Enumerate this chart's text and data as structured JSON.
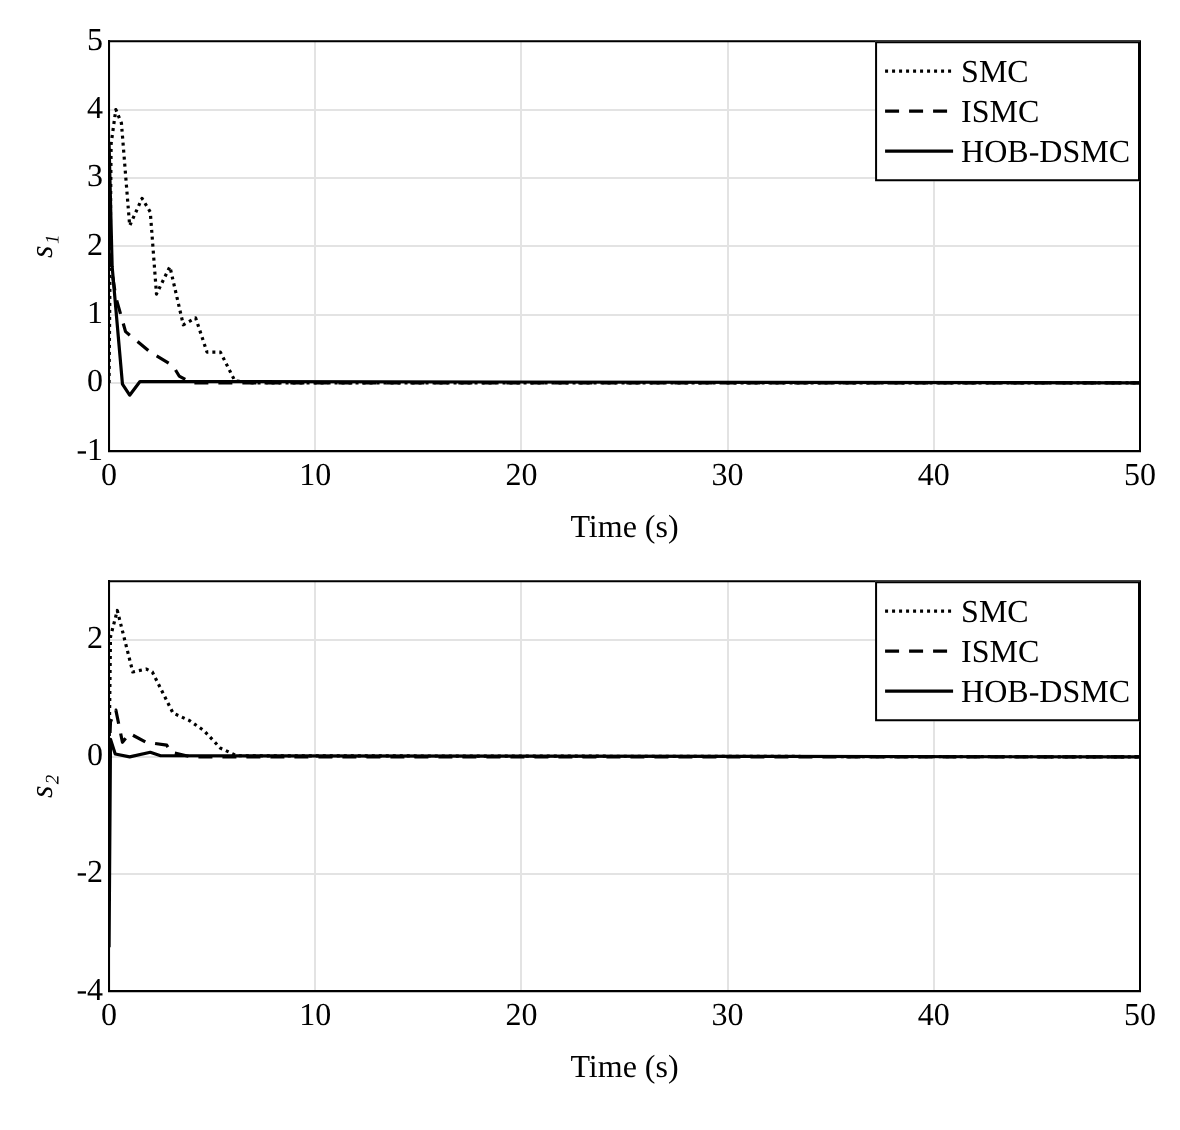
{
  "chart_data": [
    {
      "type": "line",
      "xlabel": "Time (s)",
      "ylabel": "s₁",
      "xlim": [
        0,
        50
      ],
      "xticks": [
        0,
        10,
        20,
        30,
        40,
        50
      ],
      "ylim": [
        -1,
        5
      ],
      "yticks": [
        -1,
        0,
        1,
        2,
        3,
        4,
        5
      ],
      "grid": true,
      "legend": "top right",
      "marker": "none",
      "series": [
        {
          "name": "SMC",
          "color": "#000000",
          "line_style": "dotted",
          "x": [
            0,
            0.1,
            0.33,
            0.6,
            1.0,
            1.6,
            2.0,
            2.3,
            2.95,
            3.6,
            4.2,
            4.75,
            5.4,
            6.1,
            7,
            50
          ],
          "values": [
            0,
            3.5,
            4.0,
            3.8,
            2.3,
            2.7,
            2.5,
            1.3,
            1.7,
            0.85,
            0.95,
            0.45,
            0.45,
            0.03,
            0,
            0
          ]
        },
        {
          "name": "ISMC",
          "color": "#000000",
          "line_style": "dashed",
          "x": [
            0,
            0.33,
            0.8,
            2.0,
            3.1,
            3.4,
            4,
            50
          ],
          "values": [
            1.9,
            1.25,
            0.75,
            0.45,
            0.25,
            0.1,
            0,
            0
          ]
        },
        {
          "name": "HOB-DSMC",
          "color": "#000000",
          "line_style": "solid",
          "x": [
            0,
            0.15,
            0.65,
            1.0,
            1.5,
            50
          ],
          "values": [
            3.5,
            1.7,
            -0.02,
            -0.18,
            0.02,
            0
          ]
        }
      ]
    },
    {
      "type": "line",
      "xlabel": "Time (s)",
      "ylabel": "s₂",
      "xlim": [
        0,
        50
      ],
      "xticks": [
        0,
        10,
        20,
        30,
        40,
        50
      ],
      "ylim": [
        -4,
        3
      ],
      "yticks": [
        -4,
        -2,
        0,
        2
      ],
      "grid": true,
      "legend": "top right",
      "marker": "none",
      "series": [
        {
          "name": "SMC",
          "color": "#000000",
          "line_style": "dotted",
          "x": [
            0,
            0.07,
            0.4,
            1.15,
            1.8,
            2.1,
            3.1,
            3.9,
            4.6,
            5.4,
            6.2,
            50
          ],
          "values": [
            0,
            2.05,
            2.5,
            1.45,
            1.5,
            1.45,
            0.75,
            0.62,
            0.45,
            0.15,
            0.02,
            0
          ]
        },
        {
          "name": "ISMC",
          "color": "#000000",
          "line_style": "dashed",
          "x": [
            0,
            0.07,
            0.33,
            0.65,
            1.0,
            1.8,
            2.8,
            3.0,
            4,
            50
          ],
          "values": [
            0,
            0.6,
            0.8,
            0.25,
            0.4,
            0.25,
            0.2,
            0.08,
            0,
            0
          ]
        },
        {
          "name": "HOB-DSMC",
          "color": "#000000",
          "line_style": "solid",
          "x": [
            0,
            0.07,
            0.3,
            1.0,
            2.0,
            2.5,
            50
          ],
          "values": [
            -3.25,
            0.3,
            0.05,
            0,
            0.08,
            0.02,
            0
          ]
        }
      ]
    }
  ]
}
